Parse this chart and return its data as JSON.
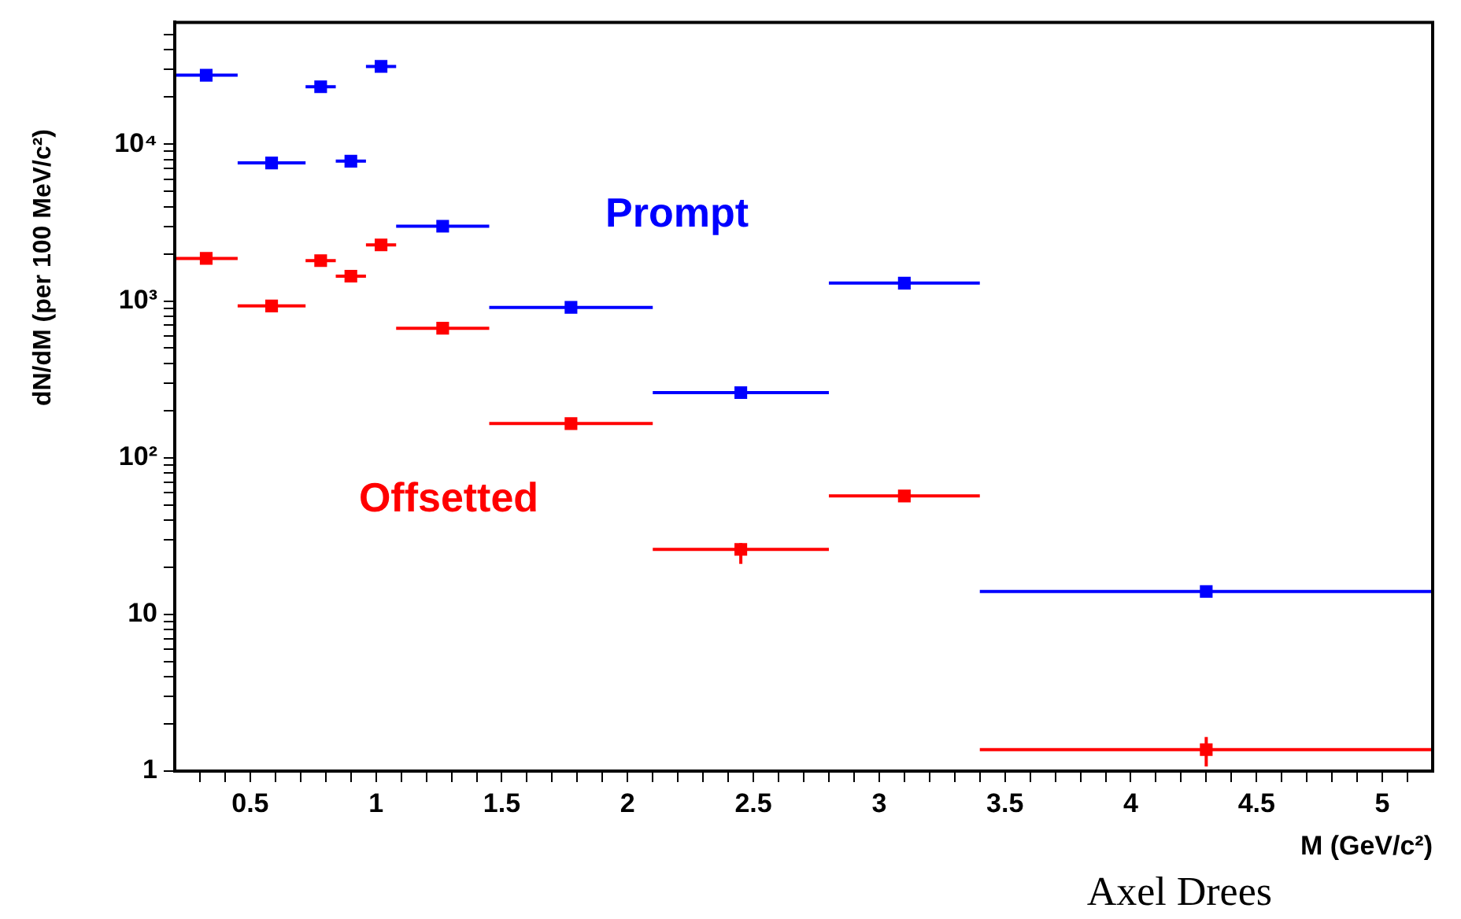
{
  "chart_data": {
    "type": "scatter",
    "xlabel": "M (GeV/c²)",
    "ylabel": "dN/dM (per 100 MeV/c²)",
    "log": "y",
    "grid": false,
    "legend": false,
    "marker": "square",
    "xlim": [
      0.2,
      5.2
    ],
    "xticks": [
      {
        "value": 0.3,
        "label": null
      },
      {
        "value": 0.4,
        "label": null
      },
      0.5,
      {
        "value": 0.6,
        "label": null
      },
      {
        "value": 0.7,
        "label": null
      },
      {
        "value": 0.8,
        "label": null
      },
      {
        "value": 0.9,
        "label": null
      },
      1,
      {
        "value": 1.1,
        "label": null
      },
      {
        "value": 1.2,
        "label": null
      },
      {
        "value": 1.3,
        "label": null
      },
      {
        "value": 1.4,
        "label": null
      },
      1.5,
      {
        "value": 1.6,
        "label": null
      },
      {
        "value": 1.7,
        "label": null
      },
      {
        "value": 1.8,
        "label": null
      },
      {
        "value": 1.9,
        "label": null
      },
      2,
      {
        "value": 2.1,
        "label": null
      },
      {
        "value": 2.2,
        "label": null
      },
      {
        "value": 2.3,
        "label": null
      },
      {
        "value": 2.4,
        "label": null
      },
      2.5,
      {
        "value": 2.6,
        "label": null
      },
      {
        "value": 2.7,
        "label": null
      },
      {
        "value": 2.8,
        "label": null
      },
      {
        "value": 2.9,
        "label": null
      },
      3,
      {
        "value": 3.1,
        "label": null
      },
      {
        "value": 3.2,
        "label": null
      },
      {
        "value": 3.3,
        "label": null
      },
      {
        "value": 3.4,
        "label": null
      },
      3.5,
      {
        "value": 3.6,
        "label": null
      },
      {
        "value": 3.7,
        "label": null
      },
      {
        "value": 3.8,
        "label": null
      },
      {
        "value": 3.9,
        "label": null
      },
      4,
      {
        "value": 4.1,
        "label": null
      },
      {
        "value": 4.2,
        "label": null
      },
      {
        "value": 4.3,
        "label": null
      },
      {
        "value": 4.4,
        "label": null
      },
      4.5,
      {
        "value": 4.6,
        "label": null
      },
      {
        "value": 4.7,
        "label": null
      },
      {
        "value": 4.8,
        "label": null
      },
      {
        "value": 4.9,
        "label": null
      },
      5,
      {
        "value": 5.1,
        "label": null
      }
    ],
    "ylim": [
      1,
      60000
    ],
    "yticks": [
      1,
      {
        "value": 2,
        "label": null
      },
      {
        "value": 3,
        "label": null
      },
      {
        "value": 4,
        "label": null
      },
      {
        "value": 5,
        "label": null
      },
      {
        "value": 6,
        "label": null
      },
      {
        "value": 7,
        "label": null
      },
      {
        "value": 8,
        "label": null
      },
      {
        "value": 9,
        "label": null
      },
      10,
      {
        "value": 20,
        "label": null
      },
      {
        "value": 30,
        "label": null
      },
      {
        "value": 40,
        "label": null
      },
      {
        "value": 50,
        "label": null
      },
      {
        "value": 60,
        "label": null
      },
      {
        "value": 70,
        "label": null
      },
      {
        "value": 80,
        "label": null
      },
      {
        "value": 90,
        "label": null
      },
      {
        "value": 100,
        "label": "10²"
      },
      {
        "value": 200,
        "label": null
      },
      {
        "value": 300,
        "label": null
      },
      {
        "value": 400,
        "label": null
      },
      {
        "value": 500,
        "label": null
      },
      {
        "value": 600,
        "label": null
      },
      {
        "value": 700,
        "label": null
      },
      {
        "value": 800,
        "label": null
      },
      {
        "value": 900,
        "label": null
      },
      {
        "value": 1000,
        "label": "10³"
      },
      {
        "value": 2000,
        "label": null
      },
      {
        "value": 3000,
        "label": null
      },
      {
        "value": 4000,
        "label": null
      },
      {
        "value": 5000,
        "label": null
      },
      {
        "value": 6000,
        "label": null
      },
      {
        "value": 7000,
        "label": null
      },
      {
        "value": 8000,
        "label": null
      },
      {
        "value": 9000,
        "label": null
      },
      {
        "value": 10000,
        "label": "10⁴"
      },
      {
        "value": 20000,
        "label": null
      },
      {
        "value": 30000,
        "label": null
      },
      {
        "value": 40000,
        "label": null
      },
      {
        "value": 50000,
        "label": null
      }
    ],
    "series": [
      {
        "name": "Prompt",
        "color": "#0000ff",
        "x": [
          0.325,
          0.585,
          0.78,
          0.9,
          1.02,
          1.265,
          1.775,
          2.45,
          3.1,
          4.3
        ],
        "values": [
          27600,
          7600,
          23300,
          7800,
          31400,
          3000,
          910,
          260,
          1300,
          14
        ],
        "xerrors": [
          [
            0.2,
            0.45
          ],
          [
            0.45,
            0.72
          ],
          [
            0.72,
            0.84
          ],
          [
            0.84,
            0.96
          ],
          [
            0.96,
            1.08
          ],
          [
            1.08,
            1.45
          ],
          [
            1.45,
            2.1
          ],
          [
            2.1,
            2.8
          ],
          [
            2.8,
            3.4
          ],
          [
            3.4,
            5.2
          ]
        ]
      },
      {
        "name": "Offsetted",
        "color": "#ff0000",
        "x": [
          0.325,
          0.585,
          0.78,
          0.9,
          1.02,
          1.265,
          1.775,
          2.45,
          3.1,
          4.3
        ],
        "values": [
          1870,
          930,
          1810,
          1440,
          2280,
          670,
          165,
          26,
          57,
          1.37
        ],
        "xerrors": [
          [
            0.2,
            0.45
          ],
          [
            0.45,
            0.72
          ],
          [
            0.72,
            0.84
          ],
          [
            0.84,
            0.96
          ],
          [
            0.96,
            1.08
          ],
          [
            1.08,
            1.45
          ],
          [
            1.45,
            2.1
          ],
          [
            2.1,
            2.8
          ],
          [
            2.8,
            3.4
          ],
          [
            3.4,
            5.2
          ]
        ],
        "errors": [
          null,
          null,
          null,
          null,
          null,
          null,
          null,
          [
            21,
            28.5
          ],
          null,
          [
            1.07,
            1.65
          ]
        ]
      }
    ],
    "annotations": [
      "Axel Drees"
    ]
  }
}
